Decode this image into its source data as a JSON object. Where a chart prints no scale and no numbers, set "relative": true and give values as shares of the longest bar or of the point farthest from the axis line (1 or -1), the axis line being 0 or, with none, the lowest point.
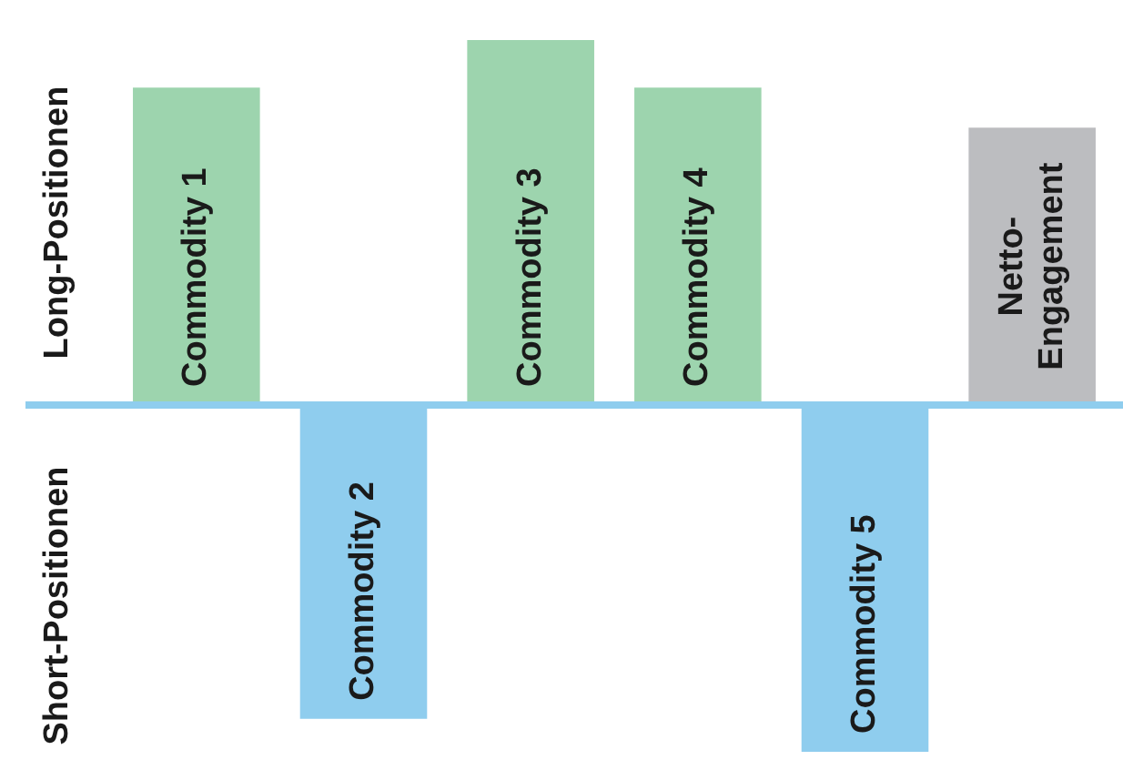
{
  "chart_data": {
    "type": "bar",
    "relative": true,
    "categories": [
      "Commodity 1",
      "Commodity 2",
      "Commodity 3",
      "Commodity 4",
      "Commodity 5",
      "Netto-\nEngagement"
    ],
    "values": [
      0.87,
      -0.86,
      1,
      0.87,
      -0.95,
      0.76
    ],
    "colors": [
      "#9dd4ae",
      "#8fcdee",
      "#9dd4ae",
      "#9dd4ae",
      "#8fcdee",
      "#bcbdc0"
    ],
    "annotations": [
      "Long-Positionen",
      "Short-Positionen"
    ],
    "legend": false
  }
}
